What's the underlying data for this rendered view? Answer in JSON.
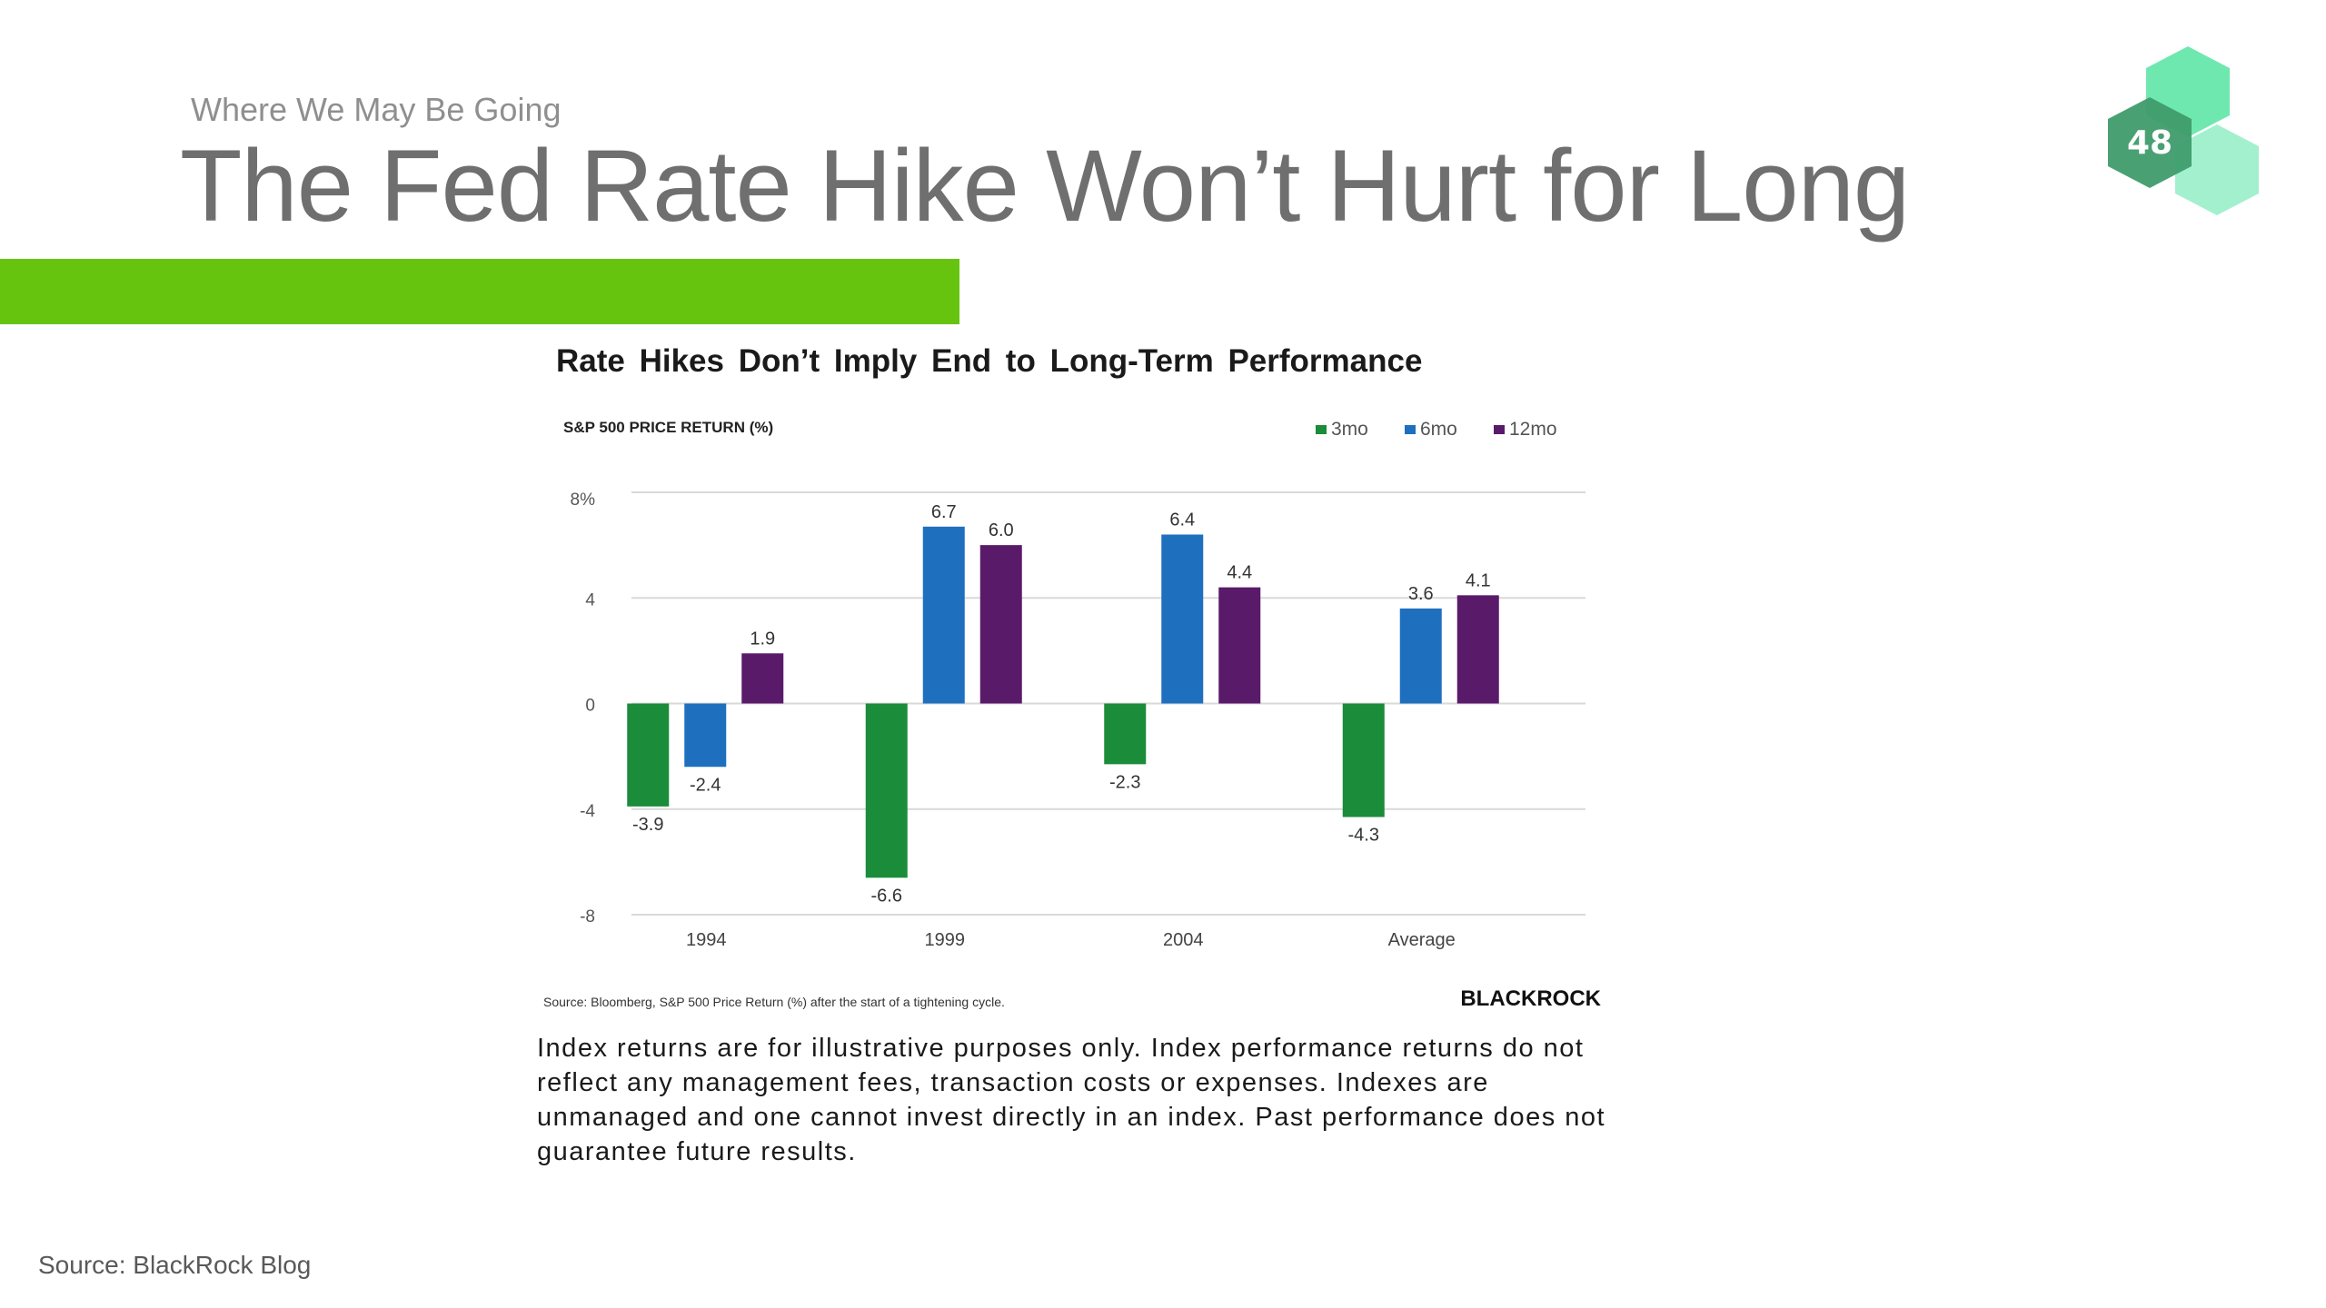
{
  "slide": {
    "subtitle": "Where We May Be Going",
    "title": "The Fed Rate Hike Won’t Hurt for Long",
    "page_number": "48",
    "footer_source": "Source: BlackRock Blog",
    "disclaimer": "Index returns are for illustrative purposes only.  Index performance returns do not reflect any management fees, transaction costs or expenses. Indexes are unmanaged and one cannot invest directly in an index. Past performance does not guarantee future results."
  },
  "colors": {
    "accent_bar": "#66c40f",
    "badge_dark": "#3f9c6c",
    "badge_light": "#6fe8b0",
    "badge_lighter": "#a3f0cf"
  },
  "chart_data": {
    "type": "bar",
    "title": "Rate Hikes Don’t Imply End to Long-Term Performance",
    "ylabel": "S&P 500 PRICE RETURN  (%)",
    "xlabel": "",
    "categories": [
      "1994",
      "1999",
      "2004",
      "Average"
    ],
    "series": [
      {
        "name": "3mo",
        "color": "#1a8c3a",
        "values": [
          -3.9,
          -6.6,
          -2.3,
          -4.3
        ],
        "labels": [
          "-3.9",
          "-6.6",
          "-2.3",
          "-4.3"
        ]
      },
      {
        "name": "6mo",
        "color": "#1f6fbf",
        "values": [
          -2.4,
          6.7,
          6.4,
          3.6
        ],
        "labels": [
          "-2.4",
          "6.7",
          "6.4",
          "3.6"
        ]
      },
      {
        "name": "12mo",
        "color": "#5a1a6a",
        "values": [
          1.9,
          6.0,
          4.4,
          4.1
        ],
        "labels": [
          "1.9",
          "6.0",
          "4.4",
          "4.1"
        ]
      }
    ],
    "ylim": [
      -8,
      8
    ],
    "yticks": [
      8,
      4,
      0,
      -4,
      -8
    ],
    "ytick_labels": [
      "8%",
      "4",
      "0",
      "-4",
      "-8"
    ],
    "grid": true,
    "legend_position": "top-right",
    "source_note": "Source: Bloomberg, S&P 500 Price Return (%) after the start of a tightening cycle.",
    "brand": "BLACKROCK"
  }
}
